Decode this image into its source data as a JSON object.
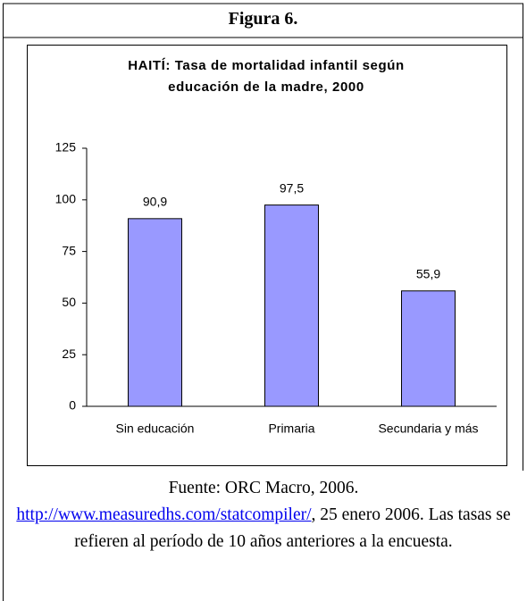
{
  "figure": {
    "label": "Figura 6.",
    "caption": {
      "source": "Fuente: ORC Macro, 2006.",
      "link": "http://www.measuredhs.com/statcompiler/",
      "rest": ", 25 enero 2006. Las tasas se refieren al período de 10 años anteriores a la encuesta."
    }
  },
  "chart_data": {
    "type": "bar",
    "title": "HAITÍ: Tasa de mortalidad infantil según educación de la madre, 2000",
    "categories": [
      "Sin educación",
      "Primaria",
      "Secundaria y más"
    ],
    "values": [
      90.9,
      97.5,
      55.9
    ],
    "value_labels": [
      "90,9",
      "97,5",
      "55,9"
    ],
    "color": "#9999ff",
    "ylim": [
      0,
      125
    ],
    "yticks": [
      0,
      25,
      50,
      75,
      100,
      125
    ],
    "grid": false
  }
}
